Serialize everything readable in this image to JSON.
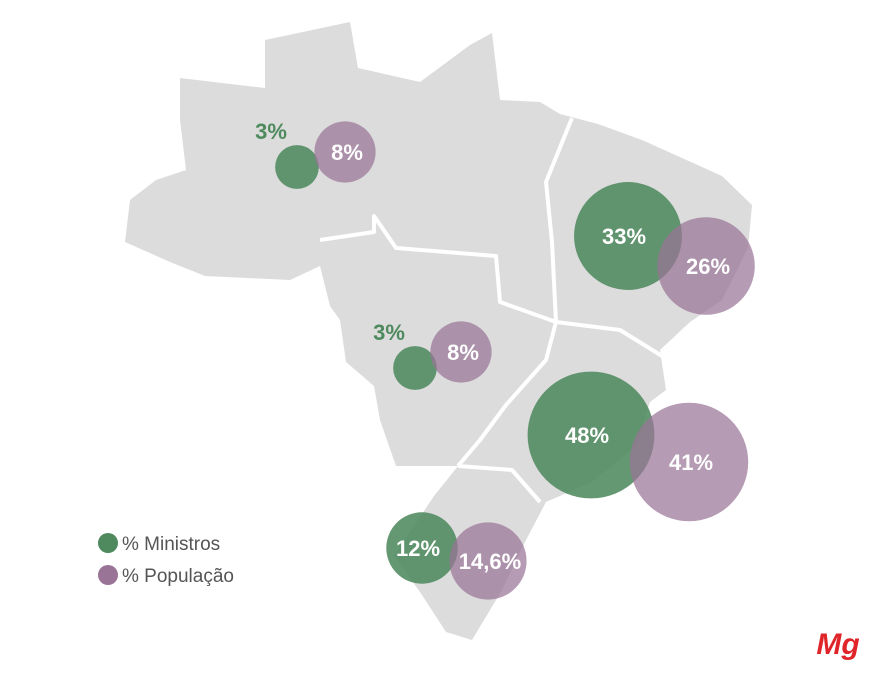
{
  "chart_data": {
    "type": "bubble_map",
    "series": [
      {
        "name": "% Ministros",
        "color": "#4f8a5e",
        "values": [
          3,
          3,
          33,
          48,
          12
        ],
        "value_labels": [
          "3%",
          "3%",
          "33%",
          "48%",
          "12%"
        ]
      },
      {
        "name": "% População",
        "color": "#9a7497",
        "values": [
          8,
          8,
          26,
          41,
          14.6
        ],
        "value_labels": [
          "8%",
          "8%",
          "26%",
          "41%",
          "14,6%"
        ]
      }
    ],
    "logo": "Mg"
  }
}
